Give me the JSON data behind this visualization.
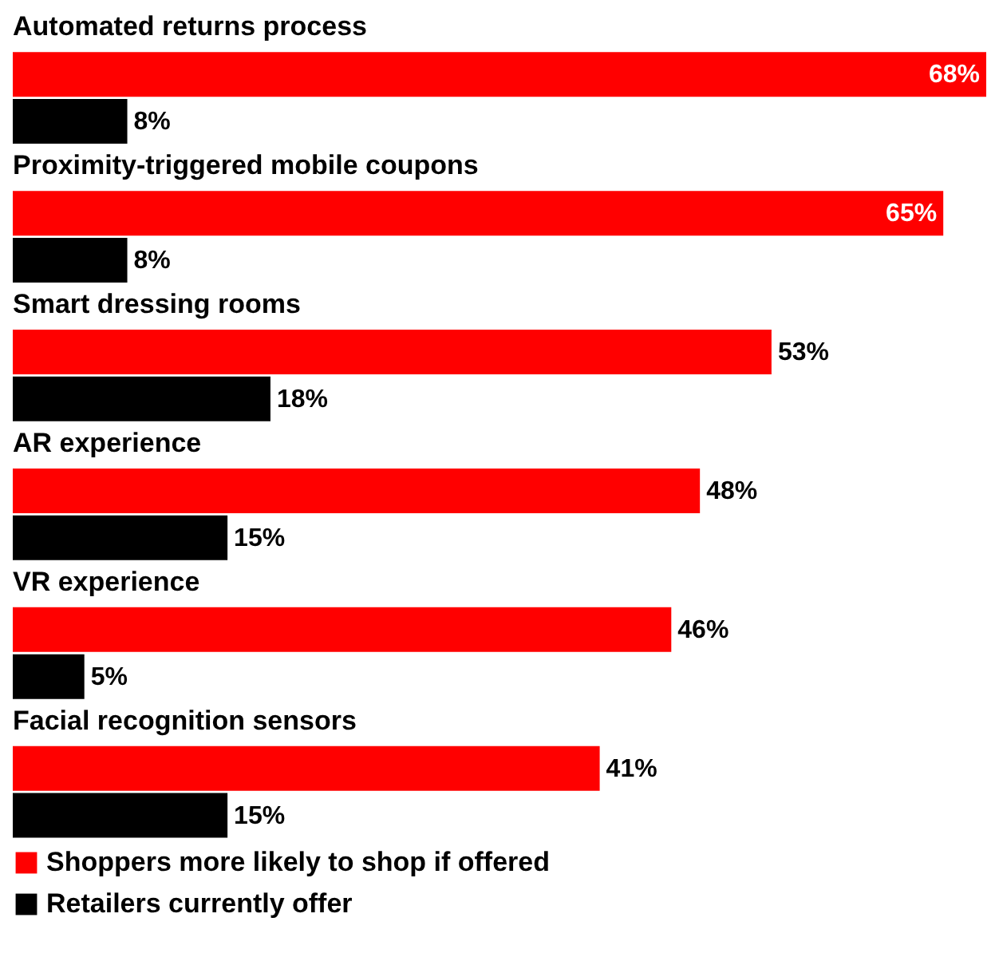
{
  "chart_data": {
    "type": "bar",
    "orientation": "horizontal",
    "categories": [
      "Automated returns process",
      "Proximity-triggered mobile coupons",
      "Smart dressing rooms",
      "AR experience",
      "VR experience",
      "Facial recognition sensors"
    ],
    "series": [
      {
        "name": "Shoppers more likely to shop if offered",
        "color": "#ff0000",
        "values": [
          68,
          65,
          53,
          48,
          46,
          41
        ],
        "value_labels": [
          "68%",
          "65%",
          "53%",
          "48%",
          "46%",
          "41%"
        ]
      },
      {
        "name": "Retailers currently offer",
        "color": "#000000",
        "values": [
          8,
          8,
          18,
          15,
          5,
          15
        ],
        "value_labels": [
          "8%",
          "8%",
          "18%",
          "15%",
          "5%",
          "15%"
        ]
      }
    ],
    "xlim": [
      0,
      68
    ],
    "tick_labels": false,
    "grid": false,
    "legend": "bottom left"
  }
}
